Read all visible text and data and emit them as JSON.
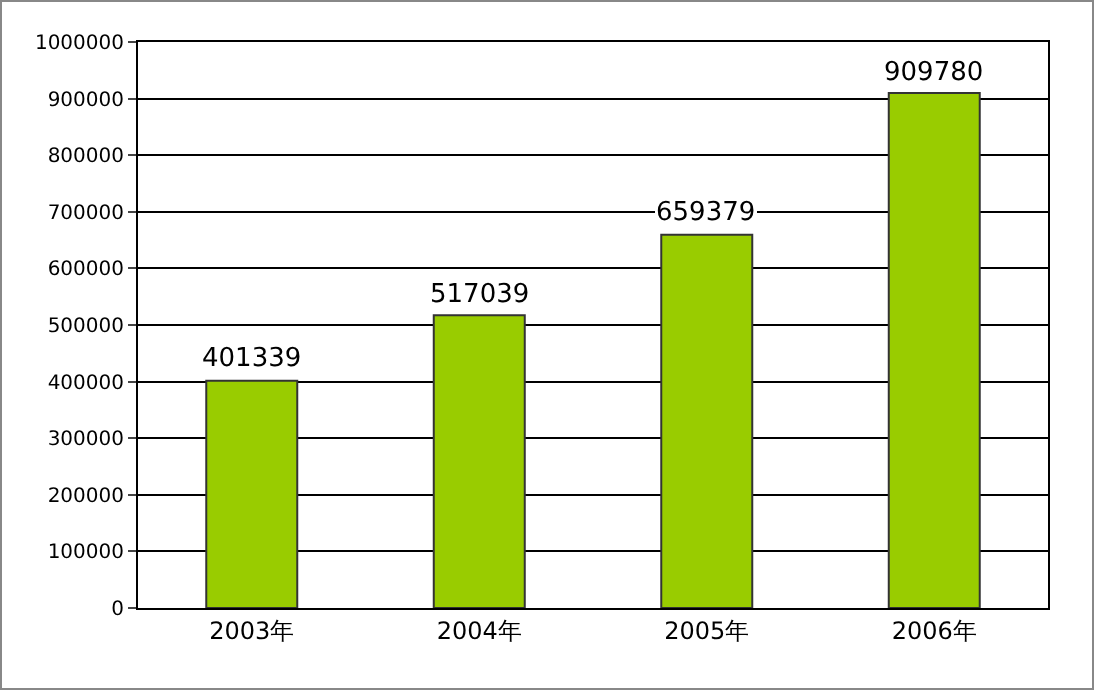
{
  "chart_data": {
    "type": "bar",
    "categories": [
      "2003年",
      "2004年",
      "2005年",
      "2006年"
    ],
    "values": [
      401339,
      517039,
      659379,
      909780
    ],
    "color": "#99cc00",
    "ylim": [
      0,
      1000000
    ],
    "yticks": [
      0,
      100000,
      200000,
      300000,
      400000,
      500000,
      600000,
      700000,
      800000,
      900000,
      1000000
    ],
    "grid": "y",
    "data_labels": true
  }
}
